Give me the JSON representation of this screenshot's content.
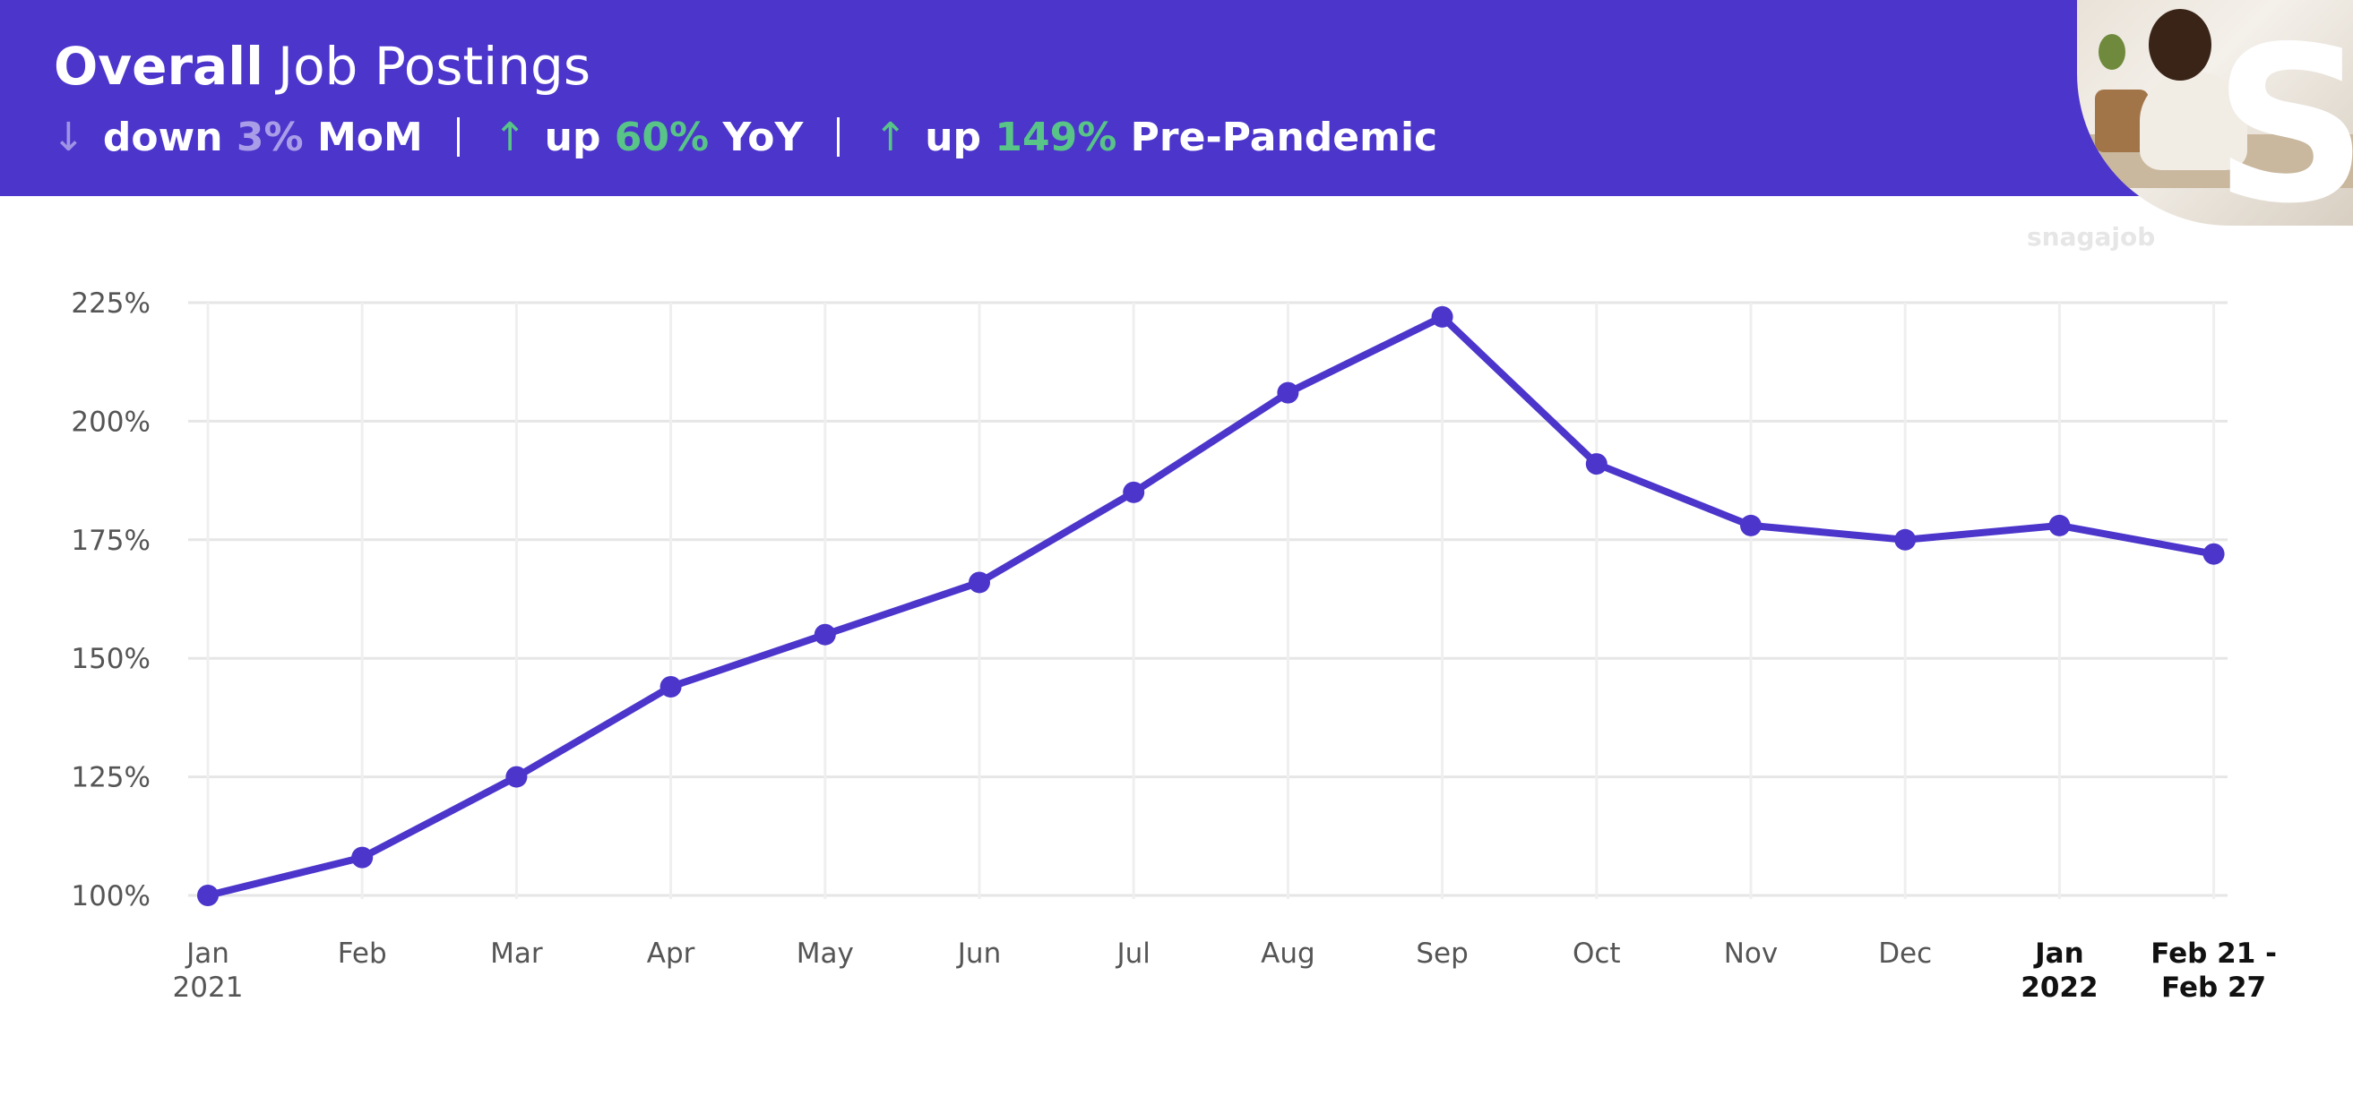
{
  "header": {
    "title_bold": "Overall",
    "title_rest": "Job Postings",
    "stats": [
      {
        "direction": "down",
        "arrow": "↓",
        "word": "down",
        "value": "3%",
        "label": "MoM"
      },
      {
        "direction": "up",
        "arrow": "↑",
        "word": "up",
        "value": "60%",
        "label": "YoY"
      },
      {
        "direction": "up",
        "arrow": "↑",
        "word": "up",
        "value": "149%",
        "label": "Pre-Pandemic"
      }
    ]
  },
  "brand": {
    "watermark": "snagajob",
    "logo_letter": "S"
  },
  "colors": {
    "header_bg": "#4b35cb",
    "line": "#4b35cb",
    "up": "#58c487",
    "down": "#a99de8",
    "grid": "#e6e6e6"
  },
  "chart_data": {
    "type": "line",
    "title": "Overall Job Postings",
    "categories": [
      [
        "Jan",
        "2021"
      ],
      [
        "Feb"
      ],
      [
        "Mar"
      ],
      [
        "Apr"
      ],
      [
        "May"
      ],
      [
        "Jun"
      ],
      [
        "Jul"
      ],
      [
        "Aug"
      ],
      [
        "Sep"
      ],
      [
        "Oct"
      ],
      [
        "Nov"
      ],
      [
        "Dec"
      ],
      [
        "Jan",
        "2022"
      ],
      [
        "Feb 21 -",
        "Feb 27"
      ]
    ],
    "emphasized_categories": [
      12,
      13
    ],
    "values": [
      100,
      108,
      125,
      144,
      155,
      166,
      185,
      206,
      222,
      191,
      178,
      175,
      178,
      172
    ],
    "y_unit": "%",
    "yticks": [
      100,
      125,
      150,
      175,
      200,
      225
    ],
    "ylim": [
      100,
      225
    ],
    "grid": true,
    "xlabel": "",
    "ylabel": ""
  }
}
